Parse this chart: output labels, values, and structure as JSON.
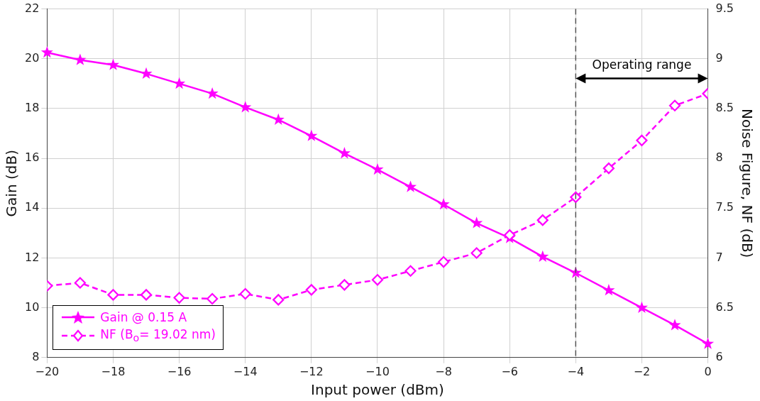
{
  "chart_data": {
    "type": "line",
    "xlabel": "Input power (dBm)",
    "ylabel": "Gain (dB)",
    "y2label": "Noise Figure, NF (dB)",
    "x": [
      -20,
      -19,
      -18,
      -17,
      -16,
      -15,
      -14,
      -13,
      -12,
      -11,
      -10,
      -9,
      -8,
      -7,
      -6,
      -5,
      -4,
      -3,
      -2,
      -1,
      0
    ],
    "series": [
      {
        "name": "Gain @ 0.15 A",
        "color": "#ff00ff",
        "marker": "star",
        "line_style": "solid",
        "values": [
          20.25,
          19.95,
          19.75,
          19.4,
          19.0,
          18.6,
          18.05,
          17.55,
          16.9,
          16.2,
          15.55,
          14.85,
          14.15,
          13.4,
          12.8,
          12.05,
          11.4,
          10.7,
          10.0,
          9.3,
          8.55
        ]
      },
      {
        "name": "NF (B$_{o}$= 19.02 nm)",
        "color": "#ff00ff",
        "marker": "diamond",
        "line_style": "dashed",
        "axis": "y2",
        "values": [
          6.72,
          6.75,
          6.63,
          6.63,
          6.6,
          6.59,
          6.64,
          6.58,
          6.68,
          6.73,
          6.78,
          6.87,
          6.96,
          7.05,
          7.23,
          7.38,
          7.61,
          7.9,
          8.18,
          8.53,
          8.65
        ]
      }
    ],
    "xlim": [
      -20,
      0
    ],
    "xticks": [
      -20,
      -18,
      -16,
      -14,
      -12,
      -10,
      -8,
      -6,
      -4,
      -2,
      0
    ],
    "ylim": [
      8,
      22
    ],
    "yticks": [
      8,
      10,
      12,
      14,
      16,
      18,
      20,
      22
    ],
    "y2lim": [
      6,
      9.5
    ],
    "y2ticks": [
      6,
      6.5,
      7,
      7.5,
      8,
      8.5,
      9,
      9.5
    ],
    "ref_lines": [
      {
        "axis": "x",
        "value": -4,
        "color": "#555555",
        "line_style": "dashed"
      }
    ],
    "annotations": [
      "Operating range"
    ],
    "grid": true,
    "legend": "bottom left"
  }
}
